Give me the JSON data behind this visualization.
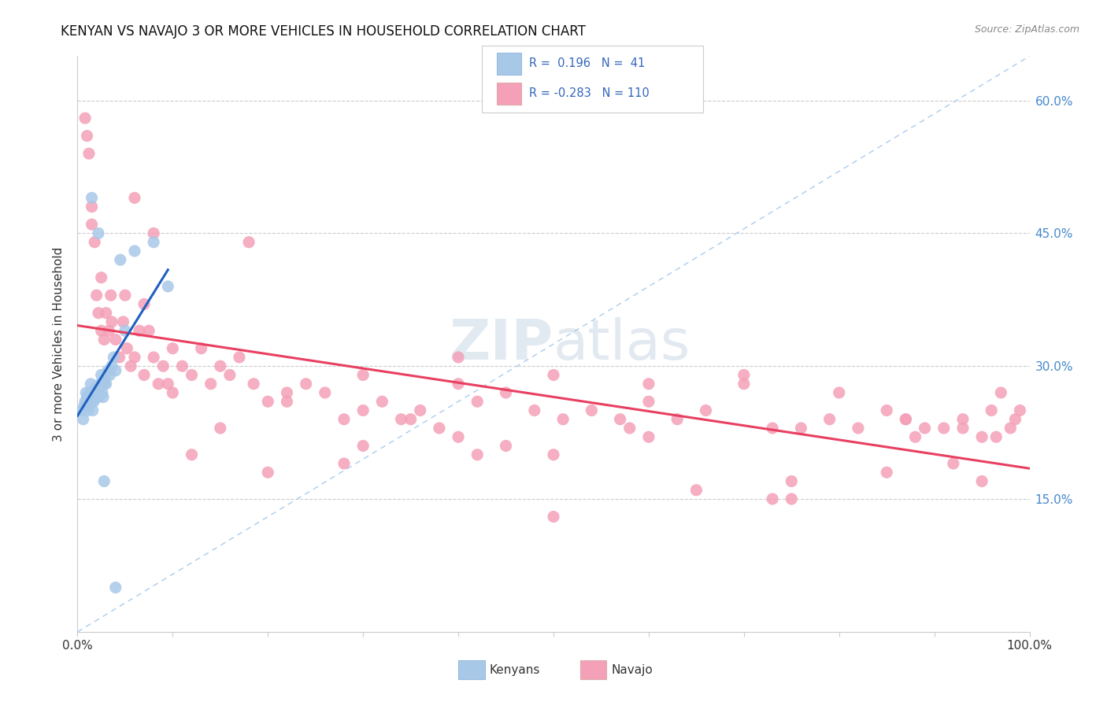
{
  "title": "KENYAN VS NAVAJO 3 OR MORE VEHICLES IN HOUSEHOLD CORRELATION CHART",
  "source_text": "Source: ZipAtlas.com",
  "ylabel": "3 or more Vehicles in Household",
  "xmin": 0.0,
  "xmax": 1.0,
  "ymin": 0.0,
  "ymax": 0.65,
  "ytick_vals": [
    0.15,
    0.3,
    0.45,
    0.6
  ],
  "ytick_labels": [
    "15.0%",
    "30.0%",
    "45.0%",
    "60.0%"
  ],
  "kenyan_color": "#a8c8e8",
  "navajo_color": "#f4a0b8",
  "kenyan_line_color": "#2060c0",
  "navajo_line_color": "#e8406080",
  "navajo_line_color_solid": "#e84060",
  "diag_color": "#aaccee",
  "background_color": "#ffffff",
  "kenyan_x": [
    0.005,
    0.006,
    0.007,
    0.008,
    0.009,
    0.01,
    0.01,
    0.011,
    0.012,
    0.013,
    0.014,
    0.015,
    0.016,
    0.017,
    0.018,
    0.019,
    0.02,
    0.021,
    0.022,
    0.023,
    0.024,
    0.025,
    0.026,
    0.027,
    0.028,
    0.029,
    0.03,
    0.032,
    0.034,
    0.036,
    0.038,
    0.04,
    0.045,
    0.05,
    0.06,
    0.08,
    0.095,
    0.04,
    0.028,
    0.022,
    0.015
  ],
  "kenyan_y": [
    0.25,
    0.24,
    0.255,
    0.26,
    0.27,
    0.265,
    0.255,
    0.25,
    0.26,
    0.27,
    0.28,
    0.26,
    0.25,
    0.26,
    0.27,
    0.275,
    0.275,
    0.27,
    0.265,
    0.275,
    0.28,
    0.29,
    0.27,
    0.265,
    0.28,
    0.285,
    0.28,
    0.295,
    0.29,
    0.3,
    0.31,
    0.295,
    0.42,
    0.34,
    0.43,
    0.44,
    0.39,
    0.05,
    0.17,
    0.45,
    0.49
  ],
  "navajo_x": [
    0.008,
    0.01,
    0.012,
    0.015,
    0.018,
    0.02,
    0.022,
    0.025,
    0.028,
    0.03,
    0.033,
    0.036,
    0.04,
    0.044,
    0.048,
    0.052,
    0.056,
    0.06,
    0.065,
    0.07,
    0.075,
    0.08,
    0.085,
    0.09,
    0.095,
    0.1,
    0.11,
    0.12,
    0.13,
    0.14,
    0.15,
    0.16,
    0.17,
    0.185,
    0.2,
    0.22,
    0.24,
    0.26,
    0.28,
    0.3,
    0.32,
    0.34,
    0.36,
    0.38,
    0.4,
    0.42,
    0.45,
    0.48,
    0.51,
    0.54,
    0.57,
    0.6,
    0.63,
    0.66,
    0.7,
    0.73,
    0.76,
    0.79,
    0.82,
    0.85,
    0.87,
    0.89,
    0.91,
    0.93,
    0.95,
    0.96,
    0.97,
    0.98,
    0.985,
    0.99,
    0.05,
    0.1,
    0.15,
    0.22,
    0.28,
    0.35,
    0.42,
    0.5,
    0.6,
    0.7,
    0.8,
    0.87,
    0.92,
    0.95,
    0.015,
    0.025,
    0.035,
    0.07,
    0.12,
    0.2,
    0.3,
    0.4,
    0.5,
    0.65,
    0.75,
    0.85,
    0.3,
    0.45,
    0.6,
    0.75,
    0.06,
    0.18,
    0.4,
    0.58,
    0.73,
    0.88,
    0.93,
    0.965,
    0.08,
    0.5
  ],
  "navajo_y": [
    0.58,
    0.56,
    0.54,
    0.48,
    0.44,
    0.38,
    0.36,
    0.34,
    0.33,
    0.36,
    0.34,
    0.35,
    0.33,
    0.31,
    0.35,
    0.32,
    0.3,
    0.31,
    0.34,
    0.29,
    0.34,
    0.31,
    0.28,
    0.3,
    0.28,
    0.32,
    0.3,
    0.29,
    0.32,
    0.28,
    0.3,
    0.29,
    0.31,
    0.28,
    0.26,
    0.27,
    0.28,
    0.27,
    0.24,
    0.25,
    0.26,
    0.24,
    0.25,
    0.23,
    0.28,
    0.26,
    0.27,
    0.25,
    0.24,
    0.25,
    0.24,
    0.28,
    0.24,
    0.25,
    0.28,
    0.23,
    0.23,
    0.24,
    0.23,
    0.25,
    0.24,
    0.23,
    0.23,
    0.24,
    0.22,
    0.25,
    0.27,
    0.23,
    0.24,
    0.25,
    0.38,
    0.27,
    0.23,
    0.26,
    0.19,
    0.24,
    0.2,
    0.29,
    0.26,
    0.29,
    0.27,
    0.24,
    0.19,
    0.17,
    0.46,
    0.4,
    0.38,
    0.37,
    0.2,
    0.18,
    0.21,
    0.22,
    0.2,
    0.16,
    0.15,
    0.18,
    0.29,
    0.21,
    0.22,
    0.17,
    0.49,
    0.44,
    0.31,
    0.23,
    0.15,
    0.22,
    0.23,
    0.22,
    0.45,
    0.13
  ]
}
